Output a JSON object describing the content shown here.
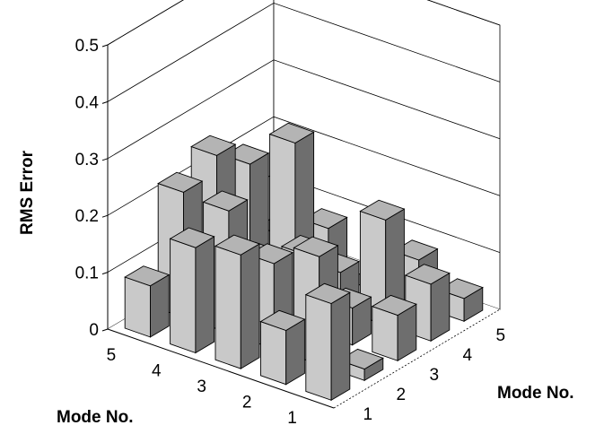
{
  "chart_data": {
    "type": "bar3d",
    "title": "",
    "zlabel": "RMS Error",
    "xlabel": "Mode No.",
    "ylabel": "Mode No.",
    "x_categories": [
      "1",
      "2",
      "3",
      "4",
      "5"
    ],
    "y_categories": [
      "1",
      "2",
      "3",
      "4",
      "5"
    ],
    "z_ticks": [
      "0",
      "0.1",
      "0.2",
      "0.3",
      "0.4",
      "0.5"
    ],
    "zlim": [
      0,
      0.5
    ],
    "grid": true,
    "bar_colors": {
      "front": "#c9c9c9",
      "side": "#6e6e6e",
      "top": "#b4b4b4"
    },
    "values": [
      [
        0.17,
        0.02,
        0.08,
        0.1,
        0.04
      ],
      [
        0.095,
        0.19,
        0.065,
        0.185,
        0.08
      ],
      [
        0.2,
        0.15,
        0.13,
        0.065,
        0.0
      ],
      [
        0.185,
        0.215,
        0.09,
        0.265,
        0.08
      ],
      [
        0.09,
        0.22,
        0.25,
        0.2,
        0.04
      ]
    ]
  }
}
